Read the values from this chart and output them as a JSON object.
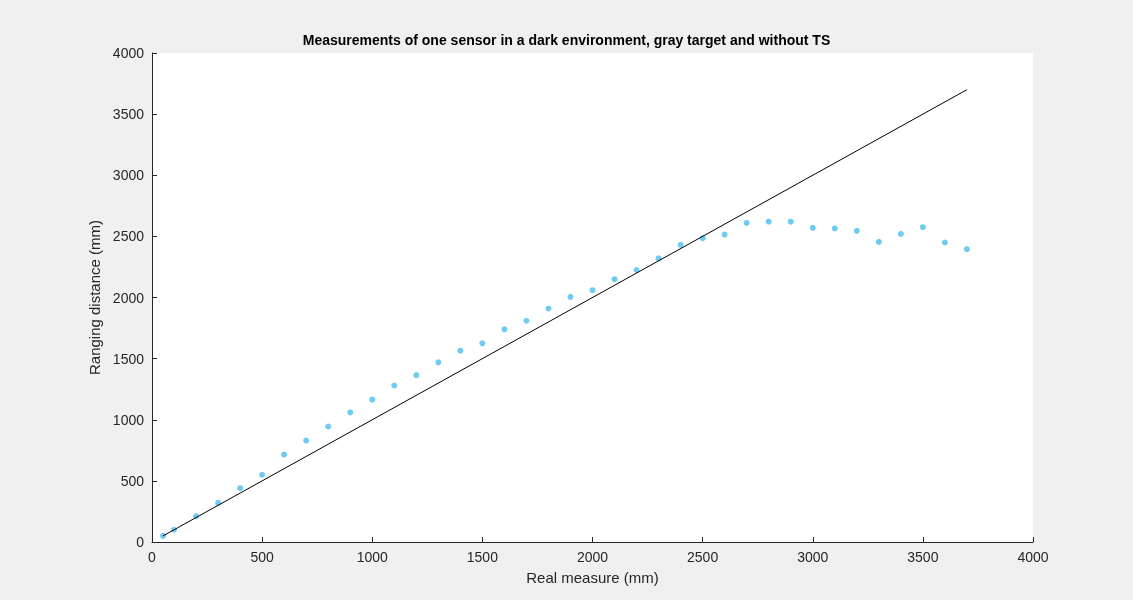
{
  "chart_data": {
    "type": "scatter",
    "title": "Measurements of one sensor in a dark environment, gray target and without TS",
    "xlabel": "Real measure (mm)",
    "ylabel": "Ranging distance (mm)",
    "x": [
      50,
      100,
      200,
      300,
      400,
      500,
      600,
      700,
      800,
      900,
      1000,
      1100,
      1200,
      1300,
      1400,
      1500,
      1600,
      1700,
      1800,
      1900,
      2000,
      2100,
      2200,
      2300,
      2400,
      2500,
      2600,
      2700,
      2800,
      2900,
      3000,
      3100,
      3200,
      3300,
      3400,
      3500,
      3600,
      3700
    ],
    "series": [
      {
        "color": "#4dbeee",
        "values": [
          50,
          100,
          210,
          320,
          440,
          550,
          715,
          830,
          945,
          1060,
          1165,
          1280,
          1365,
          1470,
          1565,
          1625,
          1740,
          1810,
          1910,
          2005,
          2060,
          2150,
          2225,
          2320,
          2430,
          2485,
          2515,
          2610,
          2620,
          2620,
          2570,
          2565,
          2545,
          2455,
          2520,
          2575,
          2450,
          2395
        ]
      },
      {
        "type": "line",
        "color": "#000000",
        "x": [
          50,
          3700
        ],
        "values": [
          50,
          3700
        ],
        "marker": "none"
      }
    ],
    "marker": "circle",
    "xlim": [
      0,
      4000
    ],
    "ylim": [
      0,
      4000
    ],
    "xticks": [
      0,
      500,
      1000,
      1500,
      2000,
      2500,
      3000,
      3500,
      4000
    ],
    "yticks": [
      0,
      500,
      1000,
      1500,
      2000,
      2500,
      3000,
      3500,
      4000
    ]
  }
}
